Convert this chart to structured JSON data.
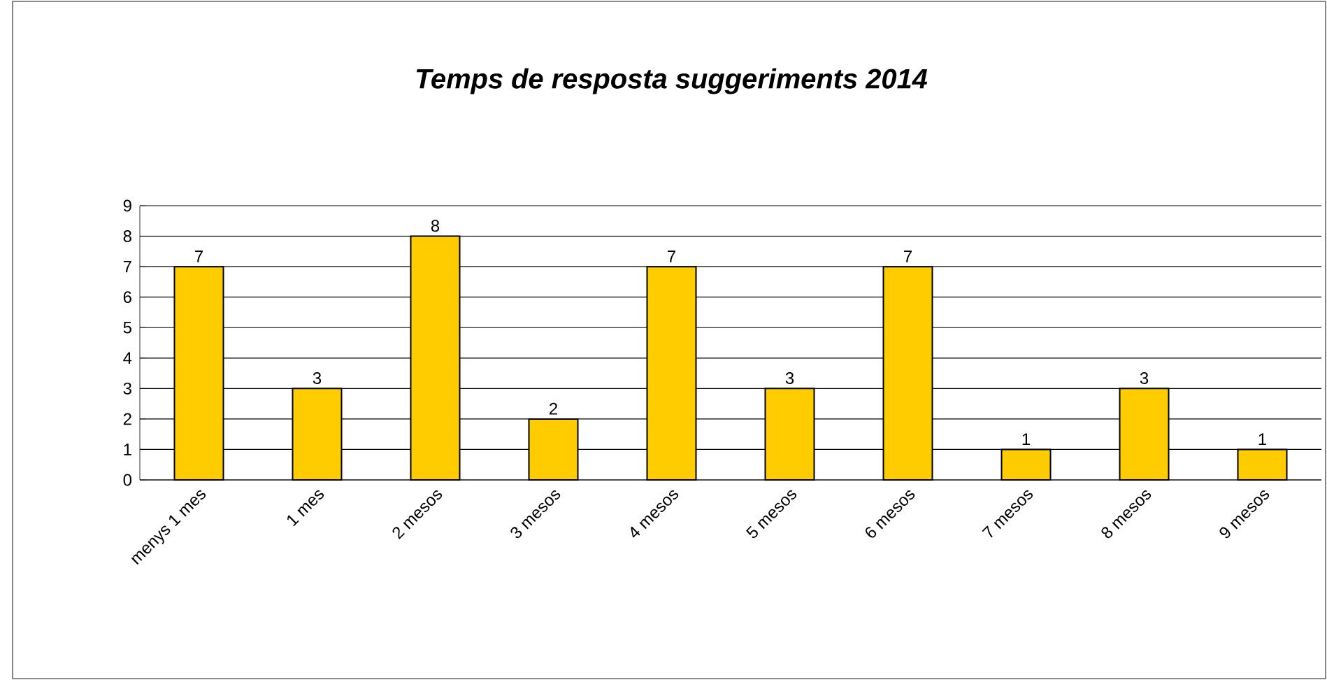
{
  "chart_data": {
    "type": "bar",
    "title": "Temps de resposta suggeriments 2014",
    "categories": [
      "menys 1 mes",
      "1 mes",
      "2 mesos",
      "3 mesos",
      "4 mesos",
      "5 mesos",
      "6 mesos",
      "7 mesos",
      "8 mesos",
      "9 mesos"
    ],
    "values": [
      7,
      3,
      8,
      2,
      7,
      3,
      7,
      1,
      3,
      1
    ],
    "color": "#ffcc00",
    "ylim": [
      0,
      9
    ],
    "yticks": [
      0,
      1,
      2,
      3,
      4,
      5,
      6,
      7,
      8,
      9
    ],
    "grid": "y",
    "data_labels": true
  }
}
